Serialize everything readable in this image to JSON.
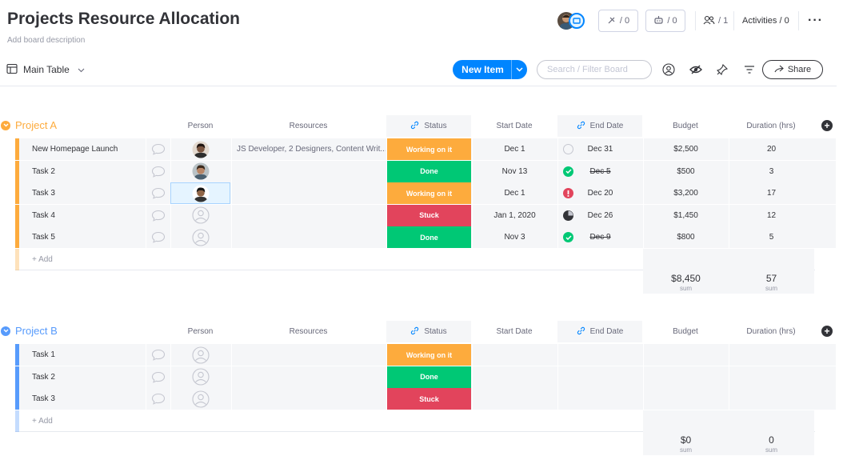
{
  "board": {
    "title": "Projects Resource Allocation",
    "description": "Add board description"
  },
  "header": {
    "integrations_count": "/ 0",
    "automations_count": "/ 0",
    "members_count": "/ 1",
    "activities_label": "Activities / 0"
  },
  "toolbar": {
    "view_label": "Main Table",
    "new_item_label": "New Item",
    "search_placeholder": "Search / Filter Board",
    "share_label": "Share"
  },
  "columns": [
    "Person",
    "Resources",
    "Status",
    "Start Date",
    "End Date",
    "Budget",
    "Duration (hrs)"
  ],
  "colors": {
    "project_a": "#fdab3d",
    "project_b": "#579bfc",
    "working": "#fdab3d",
    "done": "#00c875",
    "stuck": "#e2445c",
    "accent": "#0085ff"
  },
  "groups": [
    {
      "name": "Project A",
      "color": "#fdab3d",
      "add_label": "+ Add",
      "sum_budget": "$8,450",
      "sum_duration": "57",
      "sum_label": "sum",
      "rows": [
        {
          "name": "New Homepage Launch",
          "person": "avatar-1",
          "resources": "JS Developer, 2 Designers, Content Writ...",
          "status": "Working on it",
          "status_color": "#fdab3d",
          "start": "Dec 1",
          "end_icon": "empty",
          "end": "Dec 31",
          "end_strike": false,
          "budget": "$2,500",
          "duration": "20"
        },
        {
          "name": "Task 2",
          "person": "avatar-2",
          "resources": "",
          "status": "Done",
          "status_color": "#00c875",
          "start": "Nov 13",
          "end_icon": "check",
          "end": "Dec 5",
          "end_strike": true,
          "budget": "$500",
          "duration": "3"
        },
        {
          "name": "Task 3",
          "person": "avatar-3",
          "resources": "",
          "status": "Working on it",
          "status_color": "#fdab3d",
          "start": "Dec 1",
          "end_icon": "alert",
          "end": "Dec 20",
          "end_strike": false,
          "budget": "$3,200",
          "duration": "17"
        },
        {
          "name": "Task 4",
          "person": "empty",
          "resources": "",
          "status": "Stuck",
          "status_color": "#e2445c",
          "start": "Jan 1, 2020",
          "end_icon": "progress",
          "end": "Dec 26",
          "end_strike": false,
          "budget": "$1,450",
          "duration": "12"
        },
        {
          "name": "Task 5",
          "person": "empty",
          "resources": "",
          "status": "Done",
          "status_color": "#00c875",
          "start": "Nov 3",
          "end_icon": "check",
          "end": "Dec 9",
          "end_strike": true,
          "budget": "$800",
          "duration": "5"
        }
      ]
    },
    {
      "name": "Project B",
      "color": "#579bfc",
      "add_label": "+ Add",
      "sum_budget": "$0",
      "sum_duration": "0",
      "sum_label": "sum",
      "rows": [
        {
          "name": "Task 1",
          "person": "empty",
          "resources": "",
          "status": "Working on it",
          "status_color": "#fdab3d",
          "start": "",
          "end_icon": "none",
          "end": "",
          "end_strike": false,
          "budget": "",
          "duration": ""
        },
        {
          "name": "Task 2",
          "person": "empty",
          "resources": "",
          "status": "Done",
          "status_color": "#00c875",
          "start": "",
          "end_icon": "none",
          "end": "",
          "end_strike": false,
          "budget": "",
          "duration": ""
        },
        {
          "name": "Task 3",
          "person": "empty",
          "resources": "",
          "status": "Stuck",
          "status_color": "#e2445c",
          "start": "",
          "end_icon": "none",
          "end": "",
          "end_strike": false,
          "budget": "",
          "duration": ""
        }
      ]
    }
  ]
}
